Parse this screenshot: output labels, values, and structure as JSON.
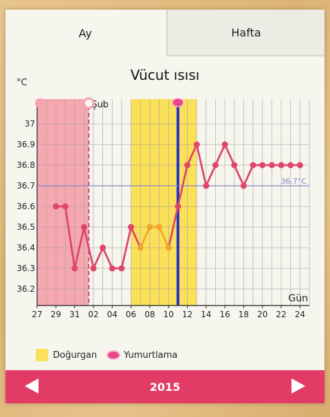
{
  "tabs": [
    {
      "label": "Ay"
    },
    {
      "label": "Hafta"
    }
  ],
  "chart_data": {
    "type": "line",
    "title": "Vücut ısısı",
    "ylabel": "°C",
    "xlabel": "Gün",
    "month_label": "Şub",
    "ylim": [
      36.12,
      37.12
    ],
    "yticks": [
      36.2,
      36.3,
      36.4,
      36.5,
      36.6,
      36.7,
      36.8,
      36.9,
      37
    ],
    "x_tick_labels": [
      "27",
      "29",
      "31",
      "02",
      "04",
      "06",
      "08",
      "10",
      "12",
      "14",
      "16",
      "18",
      "20",
      "22",
      "24"
    ],
    "series": [
      {
        "x": [
          -5,
          -4,
          -3,
          -2,
          -1,
          0,
          1,
          2,
          3,
          4,
          5,
          6,
          7,
          8,
          9,
          10,
          11,
          12,
          13,
          14,
          15,
          16,
          17,
          18,
          19,
          20,
          21
        ],
        "values": [
          36.6,
          36.6,
          36.3,
          36.5,
          36.3,
          36.4,
          36.3,
          36.3,
          36.5,
          36.4,
          36.5,
          36.5,
          36.4,
          36.6,
          36.8,
          36.9,
          36.7,
          36.8,
          36.9,
          36.8,
          36.7,
          36.8,
          36.8,
          36.8,
          36.8,
          36.8,
          36.8
        ],
        "color": "#e0456a"
      }
    ],
    "reference_line": {
      "value": 36.7,
      "label": "36.7°C",
      "color": "#8a86c6"
    },
    "period_range": [
      -7,
      -2
    ],
    "fertile_range": [
      3,
      10
    ],
    "ovulation_day": 8,
    "x_axis_start": -7,
    "x_axis_end": 22,
    "colors": {
      "period": "#f6a3ad",
      "fertile": "#fbe15a",
      "ovulation": "#1f2fc8",
      "line": "#e0456a",
      "fertile_line": "#f0a62e"
    }
  },
  "legend": {
    "fertile": "Doğurgan",
    "ovulation": "Yumurtlama"
  },
  "footer": {
    "year": "2015"
  }
}
